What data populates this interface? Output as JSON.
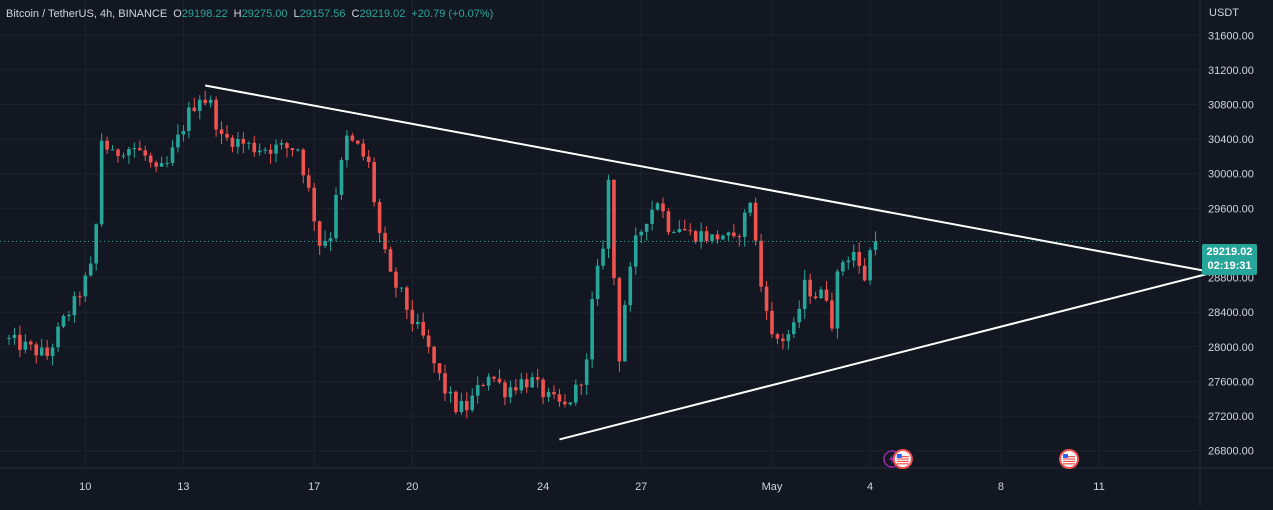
{
  "header": {
    "symbol": "Bitcoin / TetherUS, 4h, BINANCE",
    "open_label": "O",
    "open": "29198.22",
    "high_label": "H",
    "high": "29275.00",
    "low_label": "L",
    "low": "29157.56",
    "close_label": "C",
    "close": "29219.02",
    "change": "+20.79 (+0.07%)"
  },
  "currency": "USDT",
  "price_tag": {
    "price": "29219.02",
    "countdown": "02:19:31"
  },
  "colors": {
    "up": "#26a69a",
    "down": "#ef5350",
    "background": "#131722",
    "grid": "#1e222d",
    "trendline": "#ffffff"
  },
  "chart_data": {
    "type": "candlestick",
    "y_ticks": [
      "31600.00",
      "31200.00",
      "30800.00",
      "30400.00",
      "30000.00",
      "29600.00",
      "28800.00",
      "28400.00",
      "28000.00",
      "27600.00",
      "27200.00",
      "26800.00"
    ],
    "x_ticks": [
      {
        "label": "10",
        "i": 14
      },
      {
        "label": "13",
        "i": 32
      },
      {
        "label": "17",
        "i": 56
      },
      {
        "label": "20",
        "i": 74
      },
      {
        "label": "24",
        "i": 98
      },
      {
        "label": "27",
        "i": 116
      },
      {
        "label": "May",
        "i": 140
      },
      {
        "label": "4",
        "i": 158
      },
      {
        "label": "8",
        "i": 182
      },
      {
        "label": "11",
        "i": 200
      }
    ],
    "ylim": [
      26600,
      31900
    ],
    "last_price": 29219.02,
    "trendlines": [
      {
        "from": {
          "i": 36,
          "price": 31020
        },
        "to": {
          "i": 221,
          "price": 28860
        }
      },
      {
        "from": {
          "i": 101,
          "price": 26930
        },
        "to": {
          "i": 221,
          "price": 28860
        }
      }
    ],
    "event_icons": [
      "flag-us-icon",
      "flag-us-icon",
      "flash-icon"
    ],
    "anchors": [
      [
        0,
        28100
      ],
      [
        4,
        28000
      ],
      [
        8,
        27900
      ],
      [
        11,
        28300
      ],
      [
        13,
        28500
      ],
      [
        16,
        28900
      ],
      [
        17,
        29400
      ],
      [
        18,
        30400
      ],
      [
        20,
        30200
      ],
      [
        22,
        30300
      ],
      [
        24,
        30300
      ],
      [
        26,
        30200
      ],
      [
        28,
        30000
      ],
      [
        30,
        30100
      ],
      [
        32,
        30400
      ],
      [
        34,
        30700
      ],
      [
        36,
        30900
      ],
      [
        38,
        30800
      ],
      [
        40,
        30400
      ],
      [
        42,
        30400
      ],
      [
        46,
        30300
      ],
      [
        50,
        30300
      ],
      [
        54,
        30300
      ],
      [
        56,
        29800
      ],
      [
        58,
        29200
      ],
      [
        60,
        29300
      ],
      [
        61,
        29800
      ],
      [
        63,
        30400
      ],
      [
        65,
        30300
      ],
      [
        67,
        30100
      ],
      [
        69,
        29300
      ],
      [
        71,
        28800
      ],
      [
        73,
        28600
      ],
      [
        75,
        28300
      ],
      [
        77,
        28100
      ],
      [
        79,
        27800
      ],
      [
        81,
        27500
      ],
      [
        83,
        27300
      ],
      [
        85,
        27300
      ],
      [
        87,
        27500
      ],
      [
        89,
        27700
      ],
      [
        92,
        27500
      ],
      [
        95,
        27600
      ],
      [
        97,
        27600
      ],
      [
        100,
        27400
      ],
      [
        103,
        27300
      ],
      [
        105,
        27500
      ],
      [
        107,
        27800
      ],
      [
        108,
        28500
      ],
      [
        110,
        29200
      ],
      [
        111,
        29900
      ],
      [
        112,
        28800
      ],
      [
        113,
        27900
      ],
      [
        114,
        28500
      ],
      [
        116,
        29200
      ],
      [
        118,
        29500
      ],
      [
        120,
        29700
      ],
      [
        122,
        29400
      ],
      [
        124,
        29400
      ],
      [
        126,
        29300
      ],
      [
        128,
        29300
      ],
      [
        130,
        29250
      ],
      [
        132,
        29300
      ],
      [
        134,
        29200
      ],
      [
        136,
        29500
      ],
      [
        137,
        29700
      ],
      [
        138,
        29200
      ],
      [
        139,
        28700
      ],
      [
        140,
        28500
      ],
      [
        141,
        28100
      ],
      [
        143,
        28100
      ],
      [
        145,
        28200
      ],
      [
        147,
        28700
      ],
      [
        149,
        28600
      ],
      [
        151,
        28600
      ],
      [
        152,
        28300
      ],
      [
        153,
        28800
      ],
      [
        154,
        29000
      ],
      [
        156,
        29100
      ],
      [
        157,
        28900
      ],
      [
        158,
        28800
      ],
      [
        159,
        29100
      ]
    ],
    "n_candles": 160
  }
}
